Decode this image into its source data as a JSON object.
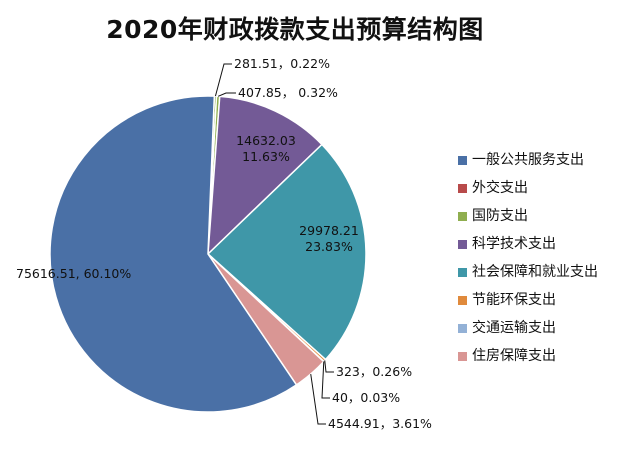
{
  "chart_data": {
    "type": "pie",
    "title": "2020年财政拨款支出预算结构图",
    "slices": [
      {
        "name": "一般公共服务支出",
        "value": 75616.51,
        "percent": "60.10%",
        "label": "75616.51, 60.10%",
        "color": "#4a70a6"
      },
      {
        "name": "外交支出",
        "value": 0,
        "percent": "",
        "label": "",
        "color": "#b84a4a"
      },
      {
        "name": "国防支出",
        "value": 281.51,
        "percent": "0.22%",
        "label": "281.51，0.22%",
        "color": "#8fae4f"
      },
      {
        "name": "科学技术支出",
        "value": 14632.03,
        "percent": "11.63%",
        "label": "14632.03\n11.63%",
        "color": "#735a96",
        "label2": "407.85，  0.32%"
      },
      {
        "name": "社会保障和就业支出",
        "value": 29978.21,
        "percent": "23.83%",
        "label": "29978.21\n23.83%",
        "color": "#3f97a8"
      },
      {
        "name": "节能环保支出",
        "value": 323,
        "percent": "0.26%",
        "label": "323，0.26%",
        "color": "#e08a3c"
      },
      {
        "name": "交通运输支出",
        "value": 40,
        "percent": "0.03%",
        "label": "40，0.03%",
        "color": "#93b1d6"
      },
      {
        "name": "住房保障支出",
        "value": 4544.91,
        "percent": "3.61%",
        "label": "4544.91，3.61%",
        "color": "#d99694"
      }
    ],
    "extra_label": {
      "value": 407.85,
      "text": "407.85，  0.32%"
    },
    "legend": [
      {
        "name": "一般公共服务支出",
        "color": "#4a70a6"
      },
      {
        "name": "外交支出",
        "color": "#b84a4a"
      },
      {
        "name": "国防支出",
        "color": "#8fae4f"
      },
      {
        "name": "科学技术支出",
        "color": "#735a96"
      },
      {
        "name": "社会保障和就业支出",
        "color": "#3f97a8"
      },
      {
        "name": "节能环保支出",
        "color": "#e08a3c"
      },
      {
        "name": "交通运输支出",
        "color": "#93b1d6"
      },
      {
        "name": "住房保障支出",
        "color": "#d99694"
      }
    ],
    "legend_position": "right"
  }
}
